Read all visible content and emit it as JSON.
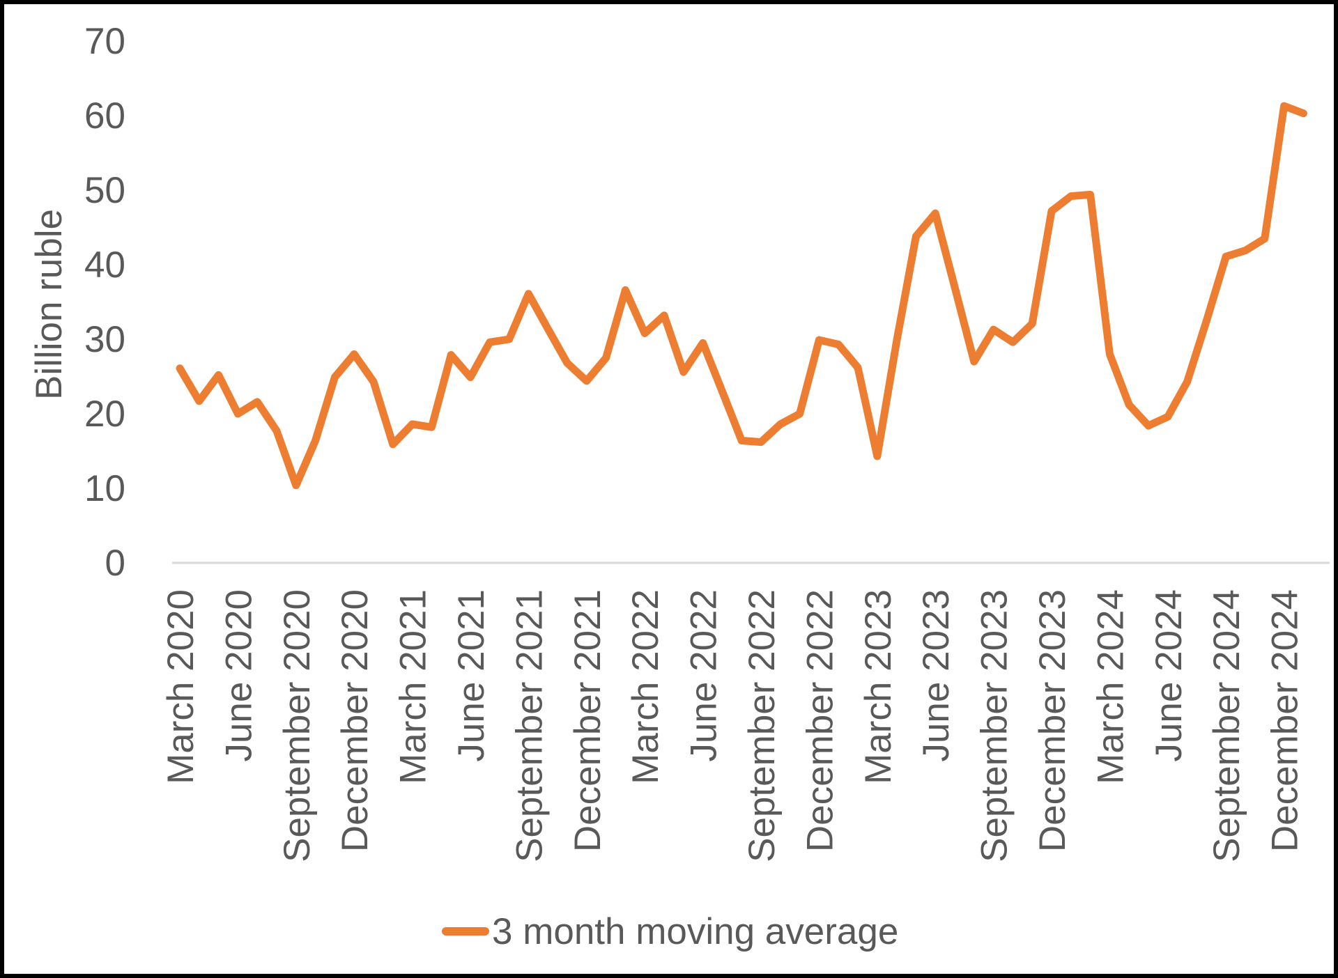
{
  "chart_data": {
    "type": "line",
    "title": "",
    "ylabel": "Billion ruble",
    "legend_label": "3 month moving average",
    "legend_position": "bottom-center",
    "grid": false,
    "ylim": [
      0,
      70
    ],
    "yticks": [
      0,
      10,
      20,
      30,
      40,
      50,
      60,
      70
    ],
    "x_tick_labels": [
      "March 2020",
      "June 2020",
      "September 2020",
      "December 2020",
      "March 2021",
      "June 2021",
      "September 2021",
      "December 2021",
      "March 2022",
      "June 2022",
      "September 2022",
      "December 2022",
      "March 2023",
      "June 2023",
      "September 2023",
      "December 2023",
      "March 2024",
      "June 2024",
      "September 2024",
      "December 2024"
    ],
    "x_tick_every_n_months": 3,
    "months": [
      "March 2020",
      "April 2020",
      "May 2020",
      "June 2020",
      "July 2020",
      "August 2020",
      "September 2020",
      "October 2020",
      "November 2020",
      "December 2020",
      "January 2021",
      "February 2021",
      "March 2021",
      "April 2021",
      "May 2021",
      "June 2021",
      "July 2021",
      "August 2021",
      "September 2021",
      "October 2021",
      "November 2021",
      "December 2021",
      "January 2022",
      "February 2022",
      "March 2022",
      "April 2022",
      "May 2022",
      "June 2022",
      "July 2022",
      "August 2022",
      "September 2022",
      "October 2022",
      "November 2022",
      "December 2022",
      "January 2023",
      "February 2023",
      "March 2023",
      "April 2023",
      "May 2023",
      "June 2023",
      "July 2023",
      "August 2023",
      "September 2023",
      "October 2023",
      "November 2023",
      "December 2023",
      "January 2024",
      "February 2024",
      "March 2024",
      "April 2024",
      "May 2024",
      "June 2024",
      "July 2024",
      "August 2024",
      "September 2024",
      "October 2024",
      "November 2024",
      "December 2024",
      "January 2025"
    ],
    "series": [
      {
        "name": "3 month moving average",
        "color": "#ED7D31",
        "values": [
          26.1,
          21.7,
          25.2,
          20.0,
          21.6,
          17.7,
          10.4,
          16.4,
          24.9,
          28.0,
          24.3,
          15.9,
          18.6,
          18.2,
          27.9,
          24.9,
          29.6,
          30.0,
          36.1,
          31.4,
          26.8,
          24.4,
          27.5,
          36.6,
          30.8,
          33.2,
          25.6,
          29.5,
          23.0,
          16.4,
          16.2,
          18.6,
          20.0,
          29.9,
          29.3,
          26.2,
          14.3,
          29.7,
          43.8,
          46.9,
          37.0,
          27.0,
          31.3,
          29.6,
          32.1,
          47.2,
          49.2,
          49.4,
          28.0,
          21.2,
          18.4,
          19.6,
          24.3,
          32.5,
          41.1,
          41.9,
          43.5,
          61.3,
          60.3
        ]
      }
    ],
    "colors": {
      "line": "#ED7D31",
      "text": "#595959",
      "axis_line": "#D9D9D9",
      "frame_border": "#000000",
      "background": "#FFFFFF"
    }
  }
}
